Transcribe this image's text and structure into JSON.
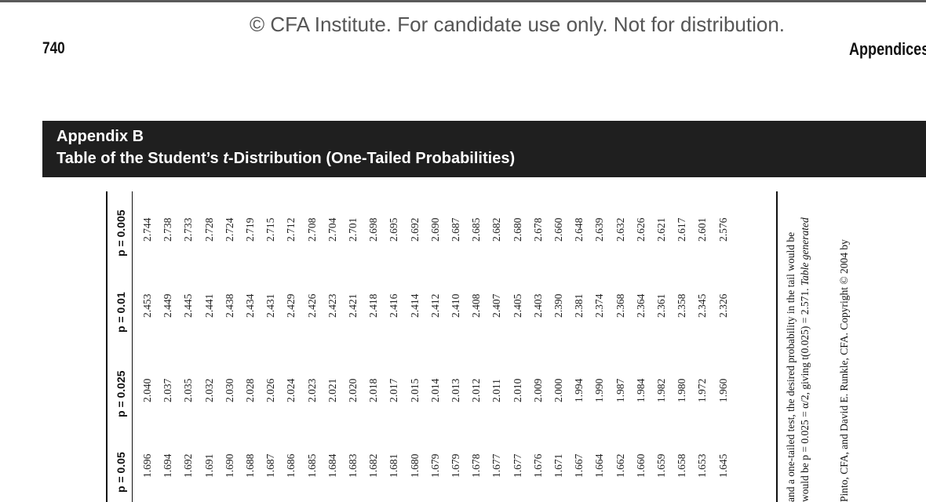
{
  "watermark": "© CFA Institute. For candidate use only. Not for distribution.",
  "page_number": "740",
  "running_head": "Appendices",
  "banner": {
    "line1": "Appendix B",
    "line2_before": "Table of the Student’s ",
    "line2_italic": "t",
    "line2_after": "-Distribution (One-Tailed Probabilities)"
  },
  "table": {
    "headers": [
      "p = 0.05",
      "p = 0.025",
      "p = 0.01",
      "p = 0.005"
    ],
    "columns": [
      [
        "1.696",
        "1.694",
        "1.692",
        "1.691",
        "1.690",
        "1.688",
        "1.687",
        "1.686",
        "1.685",
        "1.684",
        "1.683",
        "1.682",
        "1.681",
        "1.680",
        "1.679",
        "1.679",
        "1.678",
        "1.677",
        "1.677",
        "1.676",
        "1.671",
        "1.667",
        "1.664",
        "1.662",
        "1.660",
        "1.659",
        "1.658",
        "1.653",
        "1.645"
      ],
      [
        "2.040",
        "2.037",
        "2.035",
        "2.032",
        "2.030",
        "2.028",
        "2.026",
        "2.024",
        "2.023",
        "2.021",
        "2.020",
        "2.018",
        "2.017",
        "2.015",
        "2.014",
        "2.013",
        "2.012",
        "2.011",
        "2.010",
        "2.009",
        "2.000",
        "1.994",
        "1.990",
        "1.987",
        "1.984",
        "1.982",
        "1.980",
        "1.972",
        "1.960"
      ],
      [
        "2.453",
        "2.449",
        "2.445",
        "2.441",
        "2.438",
        "2.434",
        "2.431",
        "2.429",
        "2.426",
        "2.423",
        "2.421",
        "2.418",
        "2.416",
        "2.414",
        "2.412",
        "2.410",
        "2.408",
        "2.407",
        "2.405",
        "2.403",
        "2.390",
        "2.381",
        "2.374",
        "2.368",
        "2.364",
        "2.361",
        "2.358",
        "2.345",
        "2.326"
      ],
      [
        "2.744",
        "2.738",
        "2.733",
        "2.728",
        "2.724",
        "2.719",
        "2.715",
        "2.712",
        "2.708",
        "2.704",
        "2.701",
        "2.698",
        "2.695",
        "2.692",
        "2.690",
        "2.687",
        "2.685",
        "2.682",
        "2.680",
        "2.678",
        "2.660",
        "2.648",
        "2.639",
        "2.632",
        "2.626",
        "2.621",
        "2.617",
        "2.601",
        "2.576"
      ]
    ]
  },
  "notes": {
    "line1": "and a one-tailed test, the desired probability in the tail would be",
    "line2_before": "would be p = 0.025 = α/2, giving t(0.025) = 2.571. ",
    "line2_italic": "Table generated",
    "line3": "Pinto, CFA, and David E. Runkle, CFA. Copyright © 2004 by"
  }
}
